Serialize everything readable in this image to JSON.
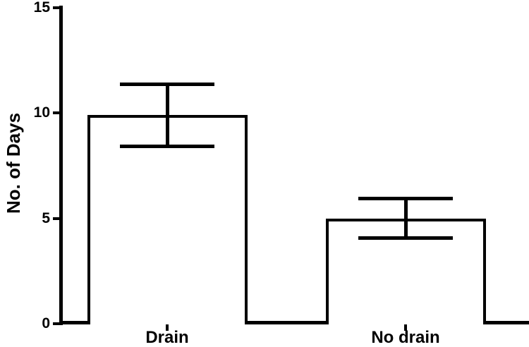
{
  "figure": {
    "background_color": "#ffffff",
    "ink_color": "#000000",
    "bar_fill_color": "#ffffff"
  },
  "chart_data": {
    "type": "bar",
    "title": "",
    "xlabel": "",
    "ylabel": "No. of Days",
    "categories": [
      "Drain",
      "No drain"
    ],
    "values": [
      9.9,
      5.0
    ],
    "error_upper": [
      11.4,
      5.95
    ],
    "error_lower": [
      8.4,
      4.05
    ],
    "ylim": [
      0,
      15
    ],
    "yticks": [
      0,
      5,
      10,
      15
    ],
    "grid": false,
    "legend_position": "none",
    "bar_style": "open bars (white fill, black border) with T-shaped error bars"
  }
}
